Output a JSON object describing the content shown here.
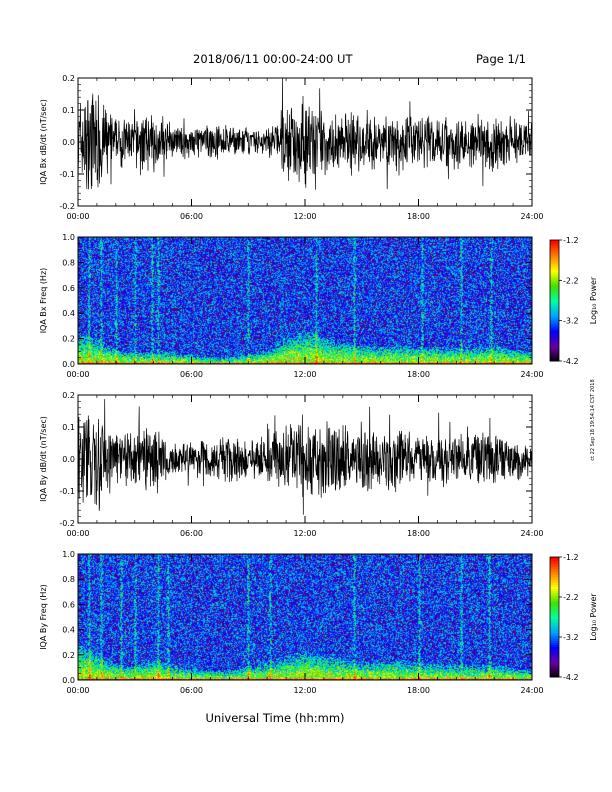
{
  "header": {
    "title": "2018/06/11  00:00-24:00 UT",
    "page": "Page 1/1"
  },
  "side_note": "ct 22 Sep 18 19:54:14 CST 2018",
  "xlabel": "Universal Time (hh:mm)",
  "colorbar": {
    "label": "Log₁₀ Power",
    "ticks": [
      "-1.2",
      "-2.2",
      "-3.2",
      "-4.2"
    ],
    "range": [
      -4.2,
      -1.2
    ],
    "colors": [
      "#000000",
      "#6a00a0",
      "#0000ff",
      "#00a0ff",
      "#00ffa0",
      "#40e000",
      "#ffff00",
      "#ff8000",
      "#ff0000"
    ]
  },
  "chart_data": [
    {
      "type": "line",
      "name": "IQA Bx dB/dt",
      "ylabel": "IQA Bx dB/dt (nT/sec)",
      "xlabel": "",
      "xlim": [
        "00:00",
        "24:00"
      ],
      "ylim": [
        -0.2,
        0.2
      ],
      "xticks": [
        "00:00",
        "06:00",
        "12:00",
        "18:00",
        "24:00"
      ],
      "yticks": [
        "0.2",
        "0.1",
        "0.0",
        "-0.1",
        "-0.2"
      ],
      "grid": false,
      "color": "#000000",
      "x": [
        "00:00",
        "01:00",
        "02:00",
        "03:00",
        "04:00",
        "05:00",
        "06:00",
        "07:00",
        "08:00",
        "09:00",
        "10:00",
        "11:00",
        "12:00",
        "13:00",
        "14:00",
        "15:00",
        "16:00",
        "17:00",
        "18:00",
        "19:00",
        "20:00",
        "21:00",
        "22:00",
        "23:00",
        "24:00"
      ],
      "amplitude": [
        0.16,
        0.19,
        0.08,
        0.09,
        0.1,
        0.05,
        0.06,
        0.06,
        0.05,
        0.05,
        0.04,
        0.14,
        0.17,
        0.1,
        0.1,
        0.12,
        0.08,
        0.11,
        0.09,
        0.1,
        0.09,
        0.09,
        0.1,
        0.08,
        0.06
      ]
    },
    {
      "type": "heatmap",
      "name": "IQA Bx Freq",
      "ylabel": "IQA Bx Freq (Hz)",
      "xlim": [
        "00:00",
        "24:00"
      ],
      "ylim": [
        0.0,
        1.0
      ],
      "xticks": [
        "00:00",
        "06:00",
        "12:00",
        "18:00",
        "24:00"
      ],
      "yticks": [
        "1.0",
        "0.8",
        "0.6",
        "0.4",
        "0.2",
        "0.0"
      ],
      "colorbar_range": [
        -4.2,
        -1.2
      ],
      "background_log10_power": -3.4,
      "lowfreq_enhancement": {
        "x": [
          "00:00",
          "01:00",
          "02:00",
          "03:00",
          "04:00",
          "05:00",
          "06:00",
          "07:00",
          "08:00",
          "09:00",
          "10:00",
          "11:00",
          "12:00",
          "13:00",
          "14:00",
          "15:00",
          "16:00",
          "17:00",
          "18:00",
          "19:00",
          "20:00",
          "21:00",
          "22:00",
          "23:00",
          "24:00"
        ],
        "top_freq_hz": [
          0.25,
          0.2,
          0.12,
          0.1,
          0.1,
          0.1,
          0.08,
          0.06,
          0.06,
          0.08,
          0.12,
          0.22,
          0.28,
          0.22,
          0.18,
          0.16,
          0.14,
          0.16,
          0.14,
          0.14,
          0.13,
          0.14,
          0.15,
          0.12,
          0.1
        ]
      },
      "vertical_streaks": [
        "00:36",
        "01:12",
        "02:00",
        "03:00",
        "03:55",
        "04:15",
        "09:00",
        "12:36",
        "14:36",
        "18:10",
        "20:15",
        "21:50"
      ]
    },
    {
      "type": "line",
      "name": "IQA By dB/dt",
      "ylabel": "IQA By dB/dt (nT/sec)",
      "xlim": [
        "00:00",
        "24:00"
      ],
      "ylim": [
        -0.2,
        0.2
      ],
      "xticks": [
        "00:00",
        "06:00",
        "12:00",
        "18:00",
        "24:00"
      ],
      "yticks": [
        "0.2",
        "0.1",
        "0.0",
        "-0.1",
        "-0.2"
      ],
      "grid": false,
      "color": "#000000",
      "x": [
        "00:00",
        "01:00",
        "02:00",
        "03:00",
        "04:00",
        "05:00",
        "06:00",
        "07:00",
        "08:00",
        "09:00",
        "10:00",
        "11:00",
        "12:00",
        "13:00",
        "14:00",
        "15:00",
        "16:00",
        "17:00",
        "18:00",
        "19:00",
        "20:00",
        "21:00",
        "22:00",
        "23:00",
        "24:00"
      ],
      "amplitude": [
        0.15,
        0.18,
        0.1,
        0.1,
        0.12,
        0.06,
        0.06,
        0.07,
        0.09,
        0.06,
        0.08,
        0.12,
        0.17,
        0.13,
        0.12,
        0.12,
        0.09,
        0.12,
        0.08,
        0.1,
        0.08,
        0.1,
        0.09,
        0.07,
        0.06
      ]
    },
    {
      "type": "heatmap",
      "name": "IQA By Freq",
      "ylabel": "IQA By Freq (Hz)",
      "xlim": [
        "00:00",
        "24:00"
      ],
      "ylim": [
        0.0,
        1.0
      ],
      "xticks": [
        "00:00",
        "06:00",
        "12:00",
        "18:00",
        "24:00"
      ],
      "yticks": [
        "1.0",
        "0.8",
        "0.6",
        "0.4",
        "0.2",
        "0.0"
      ],
      "colorbar_range": [
        -4.2,
        -1.2
      ],
      "background_log10_power": -3.4,
      "lowfreq_enhancement": {
        "x": [
          "00:00",
          "01:00",
          "02:00",
          "03:00",
          "04:00",
          "05:00",
          "06:00",
          "07:00",
          "08:00",
          "09:00",
          "10:00",
          "11:00",
          "12:00",
          "13:00",
          "14:00",
          "15:00",
          "16:00",
          "17:00",
          "18:00",
          "19:00",
          "20:00",
          "21:00",
          "22:00",
          "23:00",
          "24:00"
        ],
        "top_freq_hz": [
          0.3,
          0.22,
          0.14,
          0.12,
          0.18,
          0.12,
          0.1,
          0.08,
          0.08,
          0.12,
          0.14,
          0.2,
          0.24,
          0.2,
          0.18,
          0.16,
          0.15,
          0.17,
          0.14,
          0.13,
          0.12,
          0.12,
          0.13,
          0.1,
          0.08
        ]
      },
      "vertical_streaks": [
        "00:36",
        "01:12",
        "02:15",
        "03:00",
        "04:15",
        "04:45",
        "09:00",
        "10:10",
        "14:36",
        "18:00",
        "20:15",
        "21:45"
      ]
    }
  ]
}
